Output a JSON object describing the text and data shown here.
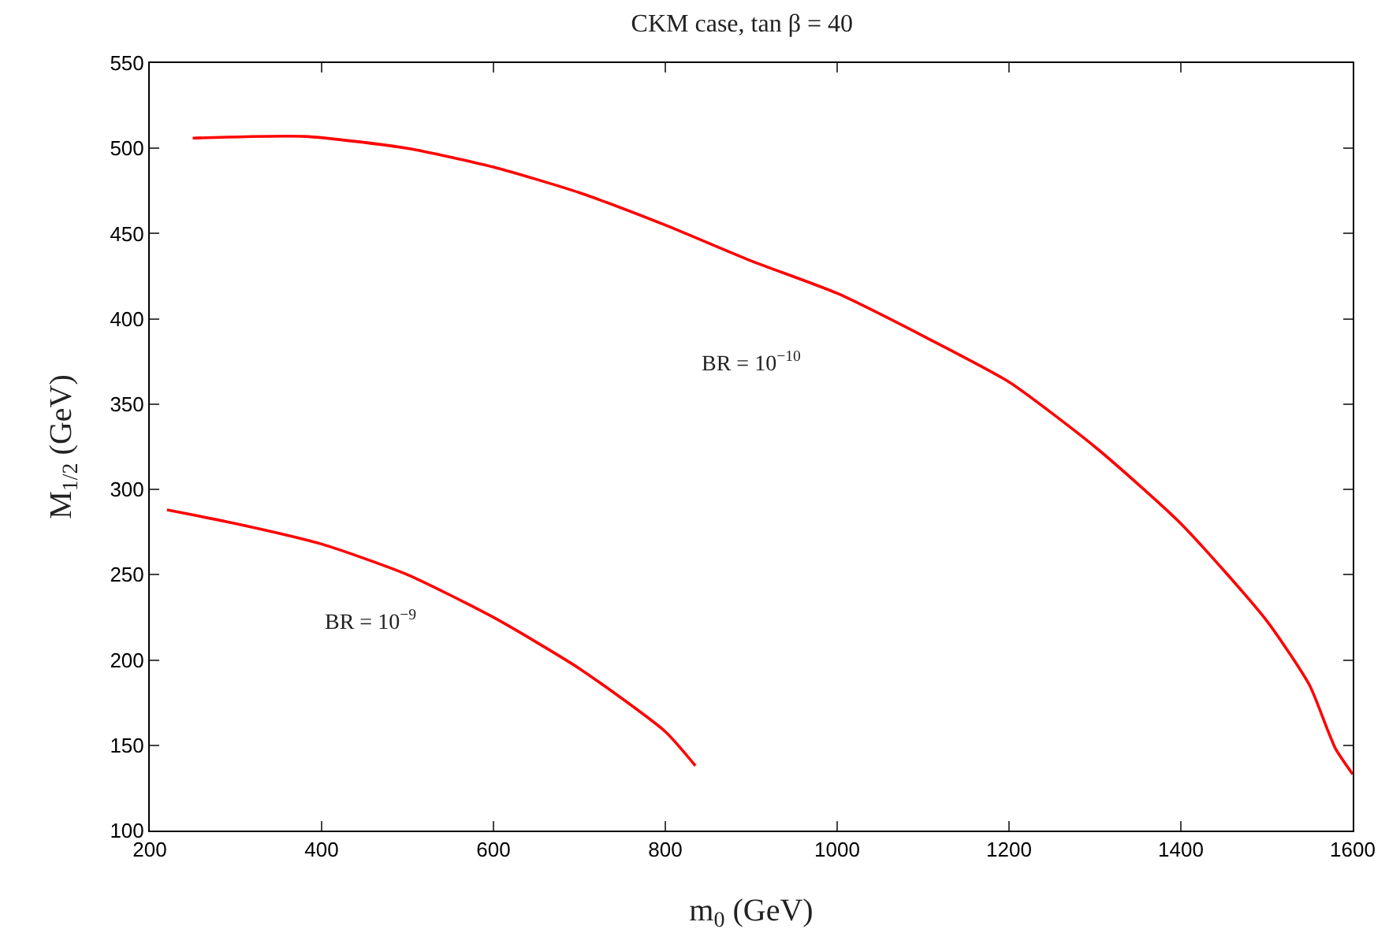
{
  "chart_data": {
    "type": "line",
    "title": "CKM case, tan β = 40",
    "xlabel": "m$_{0}$ (GeV)",
    "ylabel": "M$_{1/2}$ (GeV)",
    "xlim": [
      200,
      1600
    ],
    "xticks": [
      200,
      400,
      600,
      800,
      1000,
      1200,
      1400,
      1600
    ],
    "ylim": [
      100,
      550
    ],
    "yticks": [
      100,
      150,
      200,
      250,
      300,
      350,
      400,
      450,
      500,
      550
    ],
    "grid": false,
    "marker": "none",
    "line_style": "solid",
    "series": [
      {
        "color": "#ff0000",
        "x": [
          250,
          380,
          500,
          600,
          700,
          800,
          900,
          1000,
          1100,
          1200,
          1300,
          1400,
          1500,
          1550,
          1570,
          1580,
          1600
        ],
        "values": [
          506,
          507,
          500,
          489,
          474,
          455,
          434,
          415,
          390,
          363,
          325,
          280,
          223,
          185,
          160,
          148,
          133
        ]
      },
      {
        "color": "#ff0000",
        "x": [
          220,
          300,
          400,
          500,
          600,
          700,
          800,
          835
        ],
        "values": [
          288,
          280,
          268,
          250,
          225,
          195,
          158,
          138
        ]
      }
    ],
    "annotations": [
      "BR = 10$^{−10}$",
      "BR = 10$^{−9}$"
    ]
  }
}
